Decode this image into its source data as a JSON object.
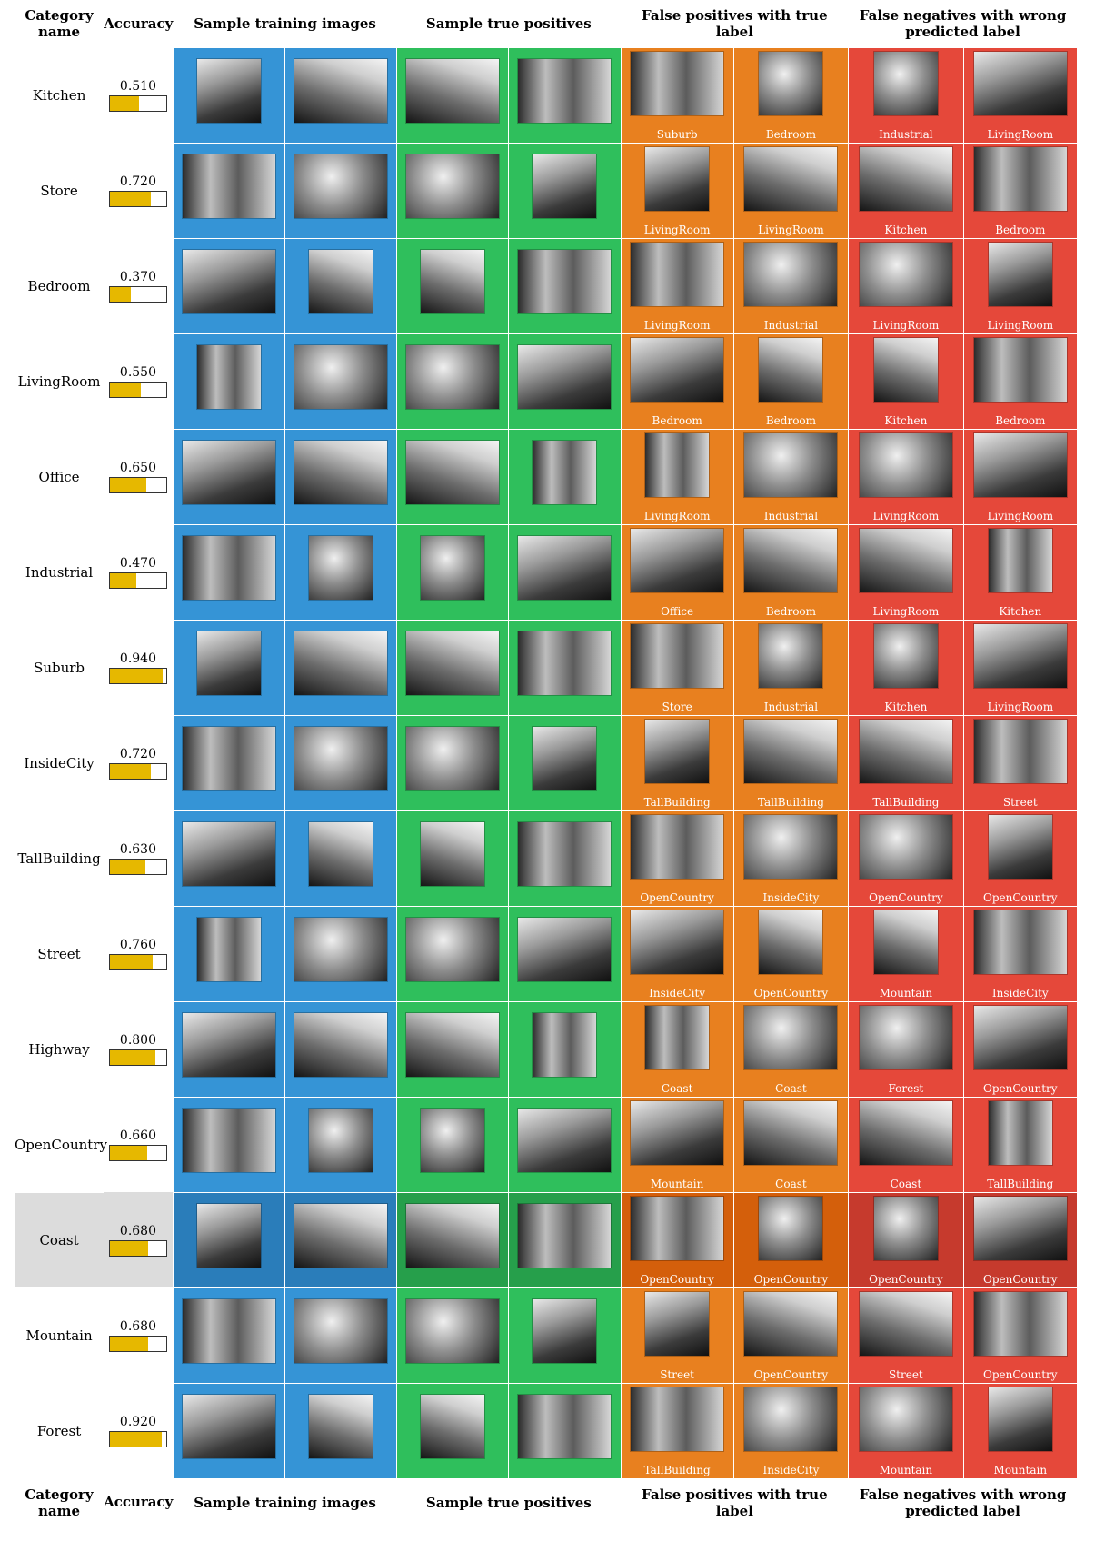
{
  "header": {
    "category": "Category name",
    "accuracy": "Accuracy",
    "training": "Sample training images",
    "true_positives": "Sample true positives",
    "false_positives": "False positives with true label",
    "false_negatives": "False negatives with wrong predicted label"
  },
  "colors": {
    "training": "#3594d6",
    "true_positives": "#2fbf5c",
    "false_positives": "#e8801f",
    "false_negatives": "#e5483a",
    "accuracy_bar": "#e6b800"
  },
  "rows": [
    {
      "name": "Kitchen",
      "accuracy": "0.510",
      "accuracy_value": 0.51,
      "fp": [
        "Suburb",
        "Bedroom"
      ],
      "fn": [
        "Industrial",
        "LivingRoom"
      ]
    },
    {
      "name": "Store",
      "accuracy": "0.720",
      "accuracy_value": 0.72,
      "fp": [
        "LivingRoom",
        "LivingRoom"
      ],
      "fn": [
        "Kitchen",
        "Bedroom"
      ]
    },
    {
      "name": "Bedroom",
      "accuracy": "0.370",
      "accuracy_value": 0.37,
      "fp": [
        "LivingRoom",
        "Industrial"
      ],
      "fn": [
        "LivingRoom",
        "LivingRoom"
      ]
    },
    {
      "name": "LivingRoom",
      "accuracy": "0.550",
      "accuracy_value": 0.55,
      "fp": [
        "Bedroom",
        "Bedroom"
      ],
      "fn": [
        "Kitchen",
        "Bedroom"
      ]
    },
    {
      "name": "Office",
      "accuracy": "0.650",
      "accuracy_value": 0.65,
      "fp": [
        "LivingRoom",
        "Industrial"
      ],
      "fn": [
        "LivingRoom",
        "LivingRoom"
      ]
    },
    {
      "name": "Industrial",
      "accuracy": "0.470",
      "accuracy_value": 0.47,
      "fp": [
        "Office",
        "Bedroom"
      ],
      "fn": [
        "LivingRoom",
        "Kitchen"
      ]
    },
    {
      "name": "Suburb",
      "accuracy": "0.940",
      "accuracy_value": 0.94,
      "fp": [
        "Store",
        "Industrial"
      ],
      "fn": [
        "Kitchen",
        "LivingRoom"
      ]
    },
    {
      "name": "InsideCity",
      "accuracy": "0.720",
      "accuracy_value": 0.72,
      "fp": [
        "TallBuilding",
        "TallBuilding"
      ],
      "fn": [
        "TallBuilding",
        "Street"
      ]
    },
    {
      "name": "TallBuilding",
      "accuracy": "0.630",
      "accuracy_value": 0.63,
      "fp": [
        "OpenCountry",
        "InsideCity"
      ],
      "fn": [
        "OpenCountry",
        "OpenCountry"
      ]
    },
    {
      "name": "Street",
      "accuracy": "0.760",
      "accuracy_value": 0.76,
      "fp": [
        "InsideCity",
        "OpenCountry"
      ],
      "fn": [
        "Mountain",
        "InsideCity"
      ]
    },
    {
      "name": "Highway",
      "accuracy": "0.800",
      "accuracy_value": 0.8,
      "fp": [
        "Coast",
        "Coast"
      ],
      "fn": [
        "Forest",
        "OpenCountry"
      ]
    },
    {
      "name": "OpenCountry",
      "accuracy": "0.660",
      "accuracy_value": 0.66,
      "fp": [
        "Mountain",
        "Coast"
      ],
      "fn": [
        "Coast",
        "TallBuilding"
      ]
    },
    {
      "name": "Coast",
      "accuracy": "0.680",
      "accuracy_value": 0.68,
      "fp": [
        "OpenCountry",
        "OpenCountry"
      ],
      "fn": [
        "OpenCountry",
        "OpenCountry"
      ],
      "highlighted": true
    },
    {
      "name": "Mountain",
      "accuracy": "0.680",
      "accuracy_value": 0.68,
      "fp": [
        "Street",
        "OpenCountry"
      ],
      "fn": [
        "Street",
        "OpenCountry"
      ]
    },
    {
      "name": "Forest",
      "accuracy": "0.920",
      "accuracy_value": 0.92,
      "fp": [
        "TallBuilding",
        "InsideCity"
      ],
      "fn": [
        "Mountain",
        "Mountain"
      ]
    }
  ]
}
